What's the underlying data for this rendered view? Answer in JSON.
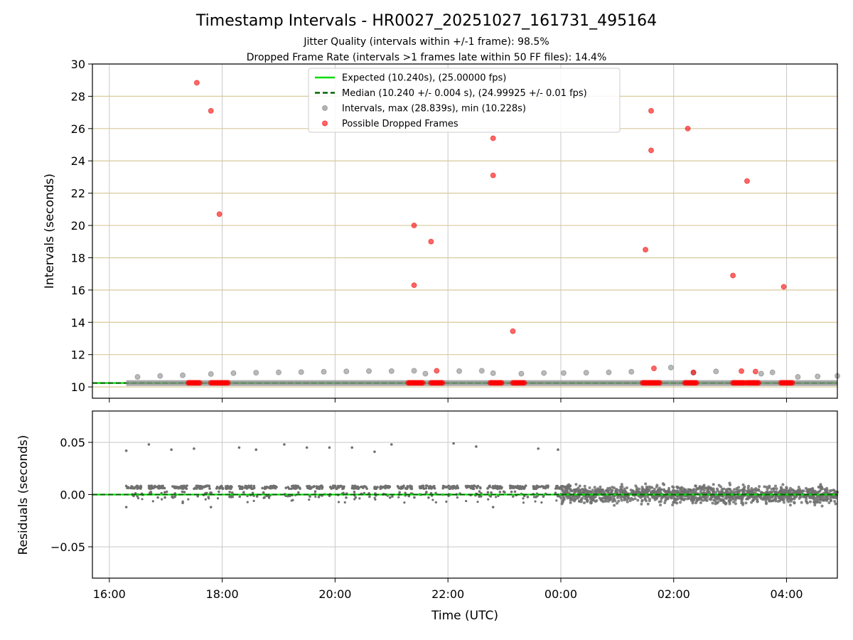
{
  "chart_data": [
    {
      "type": "scatter",
      "title": "Timestamp Intervals - HR0027_20251027_161731_495164",
      "subtitles": [
        "Jitter Quality (intervals within +/-1 frame): 98.5%",
        "Dropped Frame Rate (intervals >1 frames late within 50 FF files): 14.4%"
      ],
      "xlabel": "",
      "ylabel": "Intervals (seconds)",
      "x_unit": "hours since 00:00 UTC (16:00 = -8)",
      "xlim": [
        -8.3,
        4.9
      ],
      "ylim": [
        9.3,
        30
      ],
      "yticks": [
        "10",
        "12",
        "14",
        "16",
        "18",
        "20",
        "22",
        "24",
        "26",
        "28",
        "30"
      ],
      "grid": true,
      "hlines": [
        10,
        12,
        14,
        16,
        18,
        20,
        22,
        24,
        26,
        28,
        30
      ],
      "legend_position": "top-center",
      "legend": [
        {
          "label": "Expected (10.240s), (25.00000 fps)",
          "style": "line",
          "color": "#00dd00"
        },
        {
          "label": "Median (10.240 +/- 0.004 s), (24.99925 +/- 0.01 fps)",
          "style": "dashed",
          "color": "#006400"
        },
        {
          "label": "Intervals, max (28.839s), min (10.228s)",
          "style": "marker",
          "color": "#808080"
        },
        {
          "label": "Possible Dropped Frames",
          "style": "marker",
          "color": "#ff0000"
        }
      ],
      "expected_interval": 10.24,
      "median_interval": 10.24,
      "series": [
        {
          "name": "Intervals, max (28.839s), min (10.228s)",
          "color": "#808080",
          "points": [
            [
              -7.5,
              10.62
            ],
            [
              -7.1,
              10.68
            ],
            [
              -6.7,
              10.72
            ],
            [
              -6.2,
              10.8
            ],
            [
              -5.8,
              10.85
            ],
            [
              -5.4,
              10.88
            ],
            [
              -5.0,
              10.9
            ],
            [
              -4.6,
              10.92
            ],
            [
              -4.2,
              10.94
            ],
            [
              -3.8,
              10.96
            ],
            [
              -3.4,
              10.98
            ],
            [
              -3.0,
              10.98
            ],
            [
              -2.6,
              11.0
            ],
            [
              -2.4,
              10.82
            ],
            [
              -1.8,
              10.98
            ],
            [
              -1.4,
              11.0
            ],
            [
              -1.2,
              10.85
            ],
            [
              -0.7,
              10.82
            ],
            [
              -0.3,
              10.86
            ],
            [
              0.05,
              10.86
            ],
            [
              0.45,
              10.88
            ],
            [
              0.85,
              10.9
            ],
            [
              1.25,
              10.94
            ],
            [
              1.95,
              11.2
            ],
            [
              2.35,
              10.88
            ],
            [
              2.75,
              10.96
            ],
            [
              3.55,
              10.82
            ],
            [
              3.75,
              10.9
            ],
            [
              4.2,
              10.62
            ],
            [
              4.55,
              10.65
            ],
            [
              4.9,
              10.68
            ]
          ],
          "dense_band": {
            "x_range": [
              -7.7,
              4.9
            ],
            "value": 10.24
          }
        },
        {
          "name": "Possible Dropped Frames",
          "color": "#ff0000",
          "points": [
            [
              -6.45,
              28.84
            ],
            [
              -6.2,
              27.1
            ],
            [
              -6.05,
              20.7
            ],
            [
              -2.6,
              20.0
            ],
            [
              -2.6,
              16.3
            ],
            [
              -2.3,
              19.0
            ],
            [
              -2.2,
              11.0
            ],
            [
              -1.2,
              25.4
            ],
            [
              -1.2,
              23.1
            ],
            [
              -0.85,
              13.45
            ],
            [
              1.5,
              18.5
            ],
            [
              1.6,
              24.65
            ],
            [
              1.6,
              27.1
            ],
            [
              1.65,
              11.15
            ],
            [
              2.25,
              26.0
            ],
            [
              2.35,
              10.9
            ],
            [
              3.05,
              16.9
            ],
            [
              3.2,
              10.98
            ],
            [
              3.3,
              22.75
            ],
            [
              3.45,
              10.95
            ],
            [
              3.95,
              16.2
            ]
          ],
          "clusters": [
            {
              "x_range": [
                -6.6,
                -6.4
              ],
              "value": 10.25
            },
            {
              "x_range": [
                -6.2,
                -5.9
              ],
              "value": 10.25
            },
            {
              "x_range": [
                -2.7,
                -2.45
              ],
              "value": 10.25
            },
            {
              "x_range": [
                -2.3,
                -2.1
              ],
              "value": 10.25
            },
            {
              "x_range": [
                -1.25,
                -1.05
              ],
              "value": 10.25
            },
            {
              "x_range": [
                -0.85,
                -0.65
              ],
              "value": 10.25
            },
            {
              "x_range": [
                1.45,
                1.75
              ],
              "value": 10.25
            },
            {
              "x_range": [
                2.2,
                2.4
              ],
              "value": 10.25
            },
            {
              "x_range": [
                3.05,
                3.25
              ],
              "value": 10.25
            },
            {
              "x_range": [
                3.3,
                3.5
              ],
              "value": 10.25
            },
            {
              "x_range": [
                3.9,
                4.1
              ],
              "value": 10.25
            }
          ]
        }
      ]
    },
    {
      "type": "scatter",
      "title": "",
      "xlabel": "Time (UTC)",
      "ylabel": "Residuals (seconds)",
      "x_unit": "hours since 00:00 UTC (16:00 = -8)",
      "xlim": [
        -8.3,
        4.9
      ],
      "ylim": [
        -0.08,
        0.08
      ],
      "yticks": [
        "0.05",
        "0.00",
        "−0.05"
      ],
      "xticks": [
        "16:00",
        "18:00",
        "20:00",
        "22:00",
        "00:00",
        "02:00",
        "04:00"
      ],
      "grid": true,
      "zero_line": {
        "expected_color": "#00dd00",
        "median_color": "#006400"
      },
      "series": [
        {
          "name": "Residuals",
          "color": "#707070",
          "outliers": [
            [
              -7.7,
              0.042
            ],
            [
              -7.3,
              0.048
            ],
            [
              -6.9,
              0.043
            ],
            [
              -6.5,
              0.044
            ],
            [
              -5.7,
              0.045
            ],
            [
              -5.4,
              0.043
            ],
            [
              -4.9,
              0.048
            ],
            [
              -4.5,
              0.045
            ],
            [
              -4.1,
              0.045
            ],
            [
              -3.7,
              0.045
            ],
            [
              -3.3,
              0.041
            ],
            [
              -3.0,
              0.048
            ],
            [
              -1.9,
              0.049
            ],
            [
              -1.5,
              0.046
            ],
            [
              -0.4,
              0.044
            ],
            [
              -0.05,
              0.043
            ],
            [
              -7.7,
              -0.012
            ],
            [
              -6.7,
              -0.008
            ],
            [
              -6.2,
              -0.012
            ],
            [
              -1.2,
              -0.012
            ]
          ],
          "band_before_00": {
            "x_range": [
              -7.7,
              0.0
            ],
            "level": 0.007
          },
          "band_after_00": {
            "x_range": [
              0.0,
              4.9
            ],
            "level": 0.0,
            "spread": 0.012
          }
        }
      ]
    }
  ]
}
